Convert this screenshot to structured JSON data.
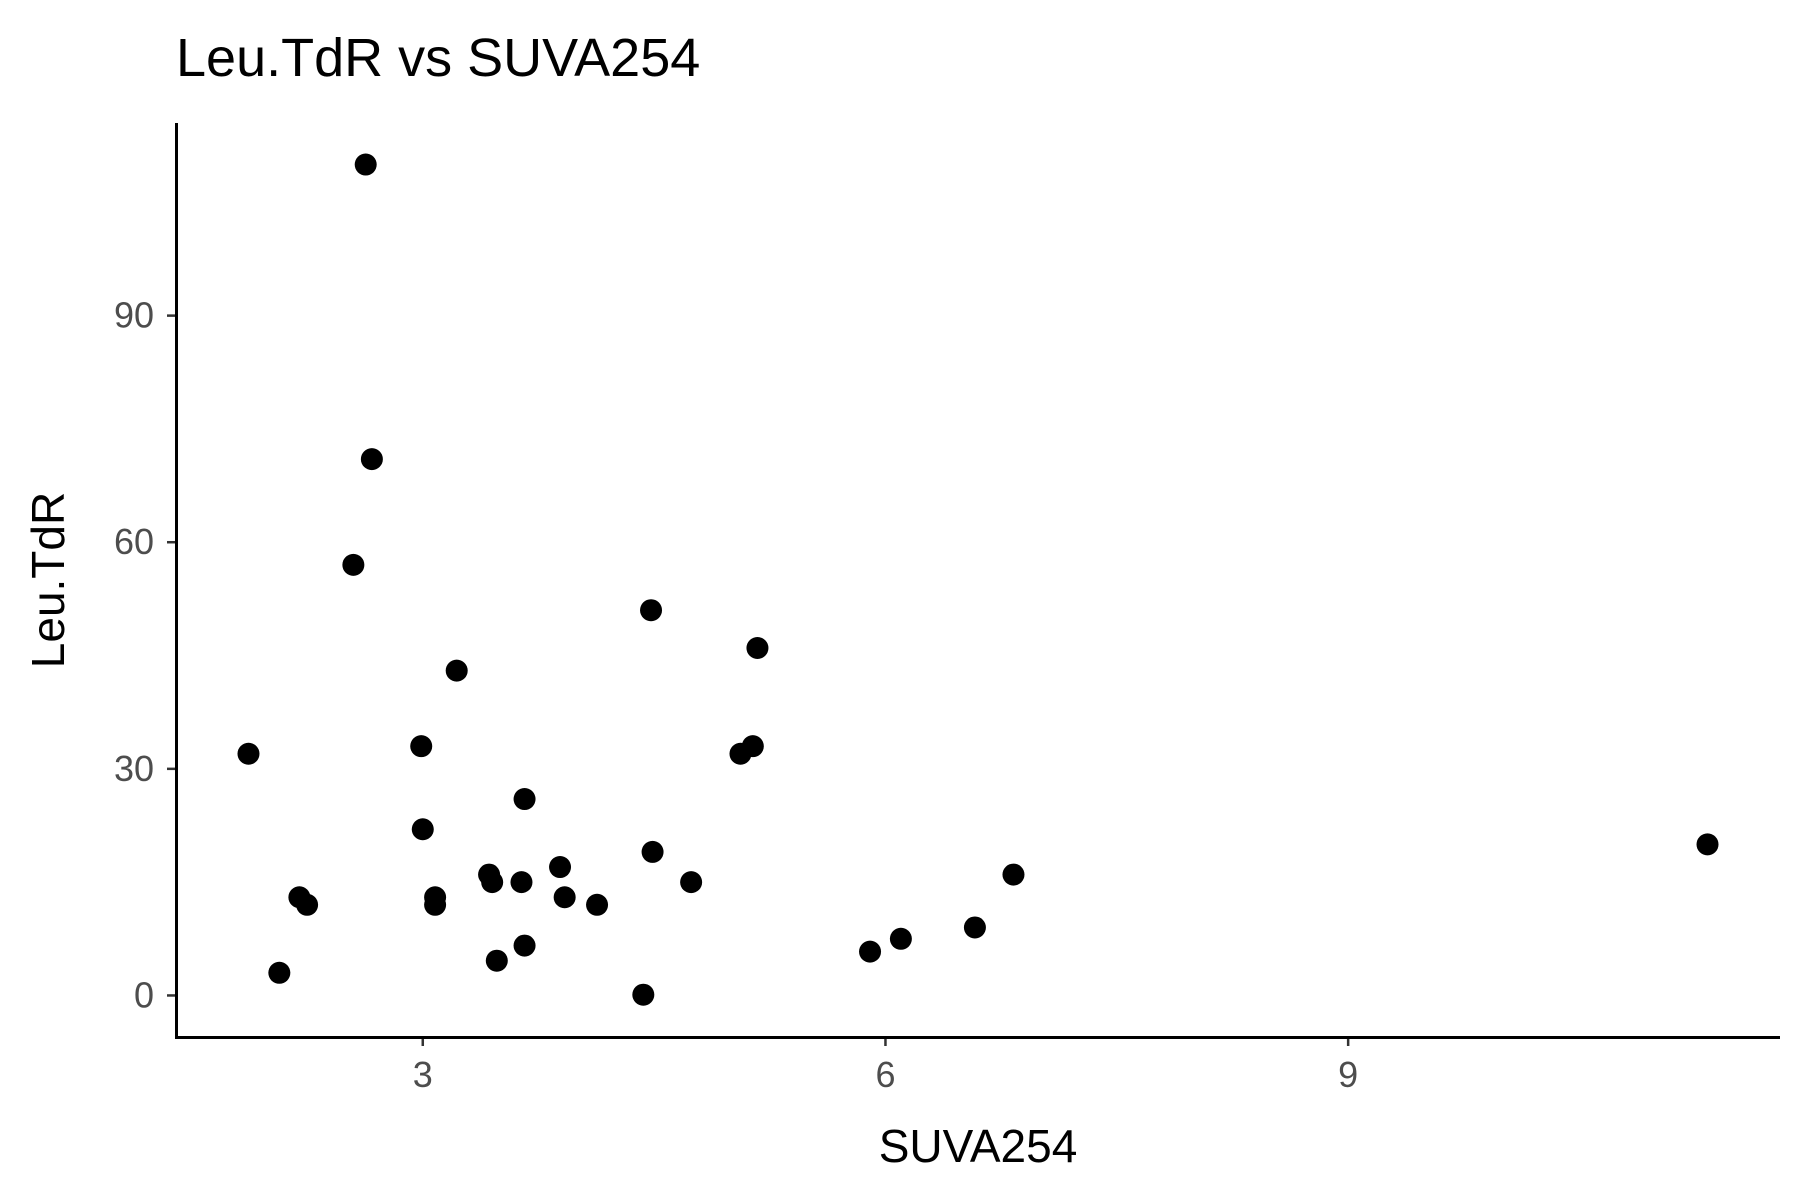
{
  "chart_data": {
    "type": "scatter",
    "title": "Leu.TdR vs SUVA254",
    "xlabel": "SUVA254",
    "ylabel": "Leu.TdR",
    "xlim": [
      1.4,
      11.8
    ],
    "ylim": [
      -5.5,
      115.5
    ],
    "xticks": [
      3,
      6,
      9
    ],
    "yticks": [
      0,
      30,
      60,
      90
    ],
    "grid": false,
    "legend": "none",
    "point_color": "#000000",
    "x": [
      2.63,
      2.67,
      2.55,
      4.48,
      5.17,
      3.22,
      1.87,
      2.99,
      5.14,
      5.06,
      3.66,
      3.0,
      4.49,
      3.89,
      3.43,
      3.64,
      4.74,
      3.45,
      6.83,
      2.2,
      2.25,
      3.08,
      3.08,
      3.92,
      4.13,
      6.58,
      6.1,
      5.9,
      3.66,
      3.48,
      2.07,
      4.43,
      11.33
    ],
    "y": [
      110,
      71,
      57,
      51,
      46,
      43,
      32,
      33,
      33,
      32,
      26,
      22,
      19,
      17,
      16,
      15,
      15,
      15,
      16,
      13,
      12,
      13,
      12,
      13,
      12,
      9,
      7.5,
      5.8,
      6.6,
      4.6,
      3,
      0.1,
      20
    ]
  }
}
